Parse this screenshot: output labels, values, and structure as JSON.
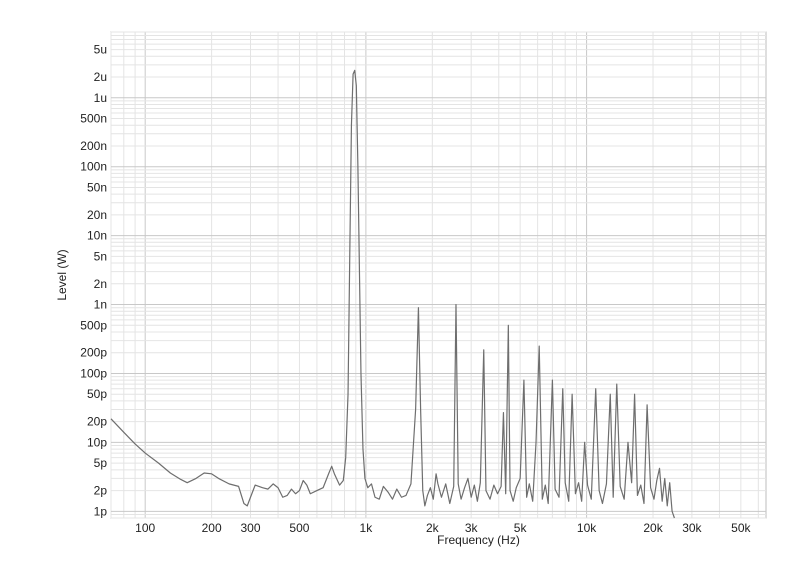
{
  "chart_data": {
    "type": "line",
    "title": "",
    "xlabel": "Frequency (Hz)",
    "ylabel": "Level (W)",
    "x_scale": "log",
    "y_scale": "log",
    "xlim": [
      70,
      65000
    ],
    "ylim": [
      8e-13,
      9e-06
    ],
    "grid": true,
    "x_ticks": [
      {
        "value": 100,
        "label": "100"
      },
      {
        "value": 200,
        "label": "200"
      },
      {
        "value": 300,
        "label": "300"
      },
      {
        "value": 500,
        "label": "500"
      },
      {
        "value": 1000,
        "label": "1k"
      },
      {
        "value": 2000,
        "label": "2k"
      },
      {
        "value": 3000,
        "label": "3k"
      },
      {
        "value": 5000,
        "label": "5k"
      },
      {
        "value": 10000,
        "label": "10k"
      },
      {
        "value": 20000,
        "label": "20k"
      },
      {
        "value": 30000,
        "label": "30k"
      },
      {
        "value": 50000,
        "label": "50k"
      }
    ],
    "y_ticks": [
      {
        "value": 1e-12,
        "label": "1p"
      },
      {
        "value": 2e-12,
        "label": "2p"
      },
      {
        "value": 5e-12,
        "label": "5p"
      },
      {
        "value": 1e-11,
        "label": "10p"
      },
      {
        "value": 2e-11,
        "label": "20p"
      },
      {
        "value": 5e-11,
        "label": "50p"
      },
      {
        "value": 1e-10,
        "label": "100p"
      },
      {
        "value": 2e-10,
        "label": "200p"
      },
      {
        "value": 5e-10,
        "label": "500p"
      },
      {
        "value": 1e-09,
        "label": "1n"
      },
      {
        "value": 2e-09,
        "label": "2n"
      },
      {
        "value": 5e-09,
        "label": "5n"
      },
      {
        "value": 1e-08,
        "label": "10n"
      },
      {
        "value": 2e-08,
        "label": "20n"
      },
      {
        "value": 5e-08,
        "label": "50n"
      },
      {
        "value": 1e-07,
        "label": "100n"
      },
      {
        "value": 2e-07,
        "label": "200n"
      },
      {
        "value": 5e-07,
        "label": "500n"
      },
      {
        "value": 1e-06,
        "label": "1u"
      },
      {
        "value": 2e-06,
        "label": "2u"
      },
      {
        "value": 5e-06,
        "label": "5u"
      }
    ],
    "series": [
      {
        "color": "#6e6e6e",
        "points": [
          [
            70,
            2.2e-11
          ],
          [
            80,
            1.4e-11
          ],
          [
            90,
            9.5e-12
          ],
          [
            100,
            7e-12
          ],
          [
            115,
            5e-12
          ],
          [
            130,
            3.6e-12
          ],
          [
            145,
            2.9e-12
          ],
          [
            155,
            2.6e-12
          ],
          [
            170,
            3e-12
          ],
          [
            185,
            3.6e-12
          ],
          [
            200,
            3.5e-12
          ],
          [
            215,
            3e-12
          ],
          [
            240,
            2.5e-12
          ],
          [
            265,
            2.3e-12
          ],
          [
            280,
            1.3e-12
          ],
          [
            290,
            1.2e-12
          ],
          [
            300,
            1.6e-12
          ],
          [
            315,
            2.4e-12
          ],
          [
            340,
            2.2e-12
          ],
          [
            360,
            2.1e-12
          ],
          [
            380,
            2.5e-12
          ],
          [
            400,
            2.2e-12
          ],
          [
            420,
            1.6e-12
          ],
          [
            440,
            1.7e-12
          ],
          [
            460,
            2.1e-12
          ],
          [
            480,
            1.8e-12
          ],
          [
            500,
            2e-12
          ],
          [
            520,
            2.8e-12
          ],
          [
            540,
            2.4e-12
          ],
          [
            560,
            1.8e-12
          ],
          [
            600,
            2e-12
          ],
          [
            640,
            2.2e-12
          ],
          [
            680,
            3.6e-12
          ],
          [
            700,
            4.5e-12
          ],
          [
            720,
            3.5e-12
          ],
          [
            760,
            2.4e-12
          ],
          [
            790,
            2.8e-12
          ],
          [
            810,
            6e-12
          ],
          [
            830,
            5e-11
          ],
          [
            845,
            5e-09
          ],
          [
            860,
            4e-07
          ],
          [
            875,
            2.2e-06
          ],
          [
            890,
            2.5e-06
          ],
          [
            905,
            1.5e-06
          ],
          [
            920,
            1e-07
          ],
          [
            935,
            3e-09
          ],
          [
            950,
            1e-10
          ],
          [
            970,
            8e-12
          ],
          [
            990,
            3e-12
          ],
          [
            1020,
            2.2e-12
          ],
          [
            1060,
            2.5e-12
          ],
          [
            1100,
            1.6e-12
          ],
          [
            1150,
            1.5e-12
          ],
          [
            1200,
            2.3e-12
          ],
          [
            1260,
            1.9e-12
          ],
          [
            1320,
            1.5e-12
          ],
          [
            1380,
            2.1e-12
          ],
          [
            1450,
            1.6e-12
          ],
          [
            1520,
            1.7e-12
          ],
          [
            1600,
            2.5e-12
          ],
          [
            1680,
            3e-11
          ],
          [
            1730,
            9e-10
          ],
          [
            1770,
            3e-11
          ],
          [
            1810,
            2e-12
          ],
          [
            1850,
            1.2e-12
          ],
          [
            1900,
            1.7e-12
          ],
          [
            1960,
            2.2e-12
          ],
          [
            2020,
            1.5e-12
          ],
          [
            2080,
            3.5e-12
          ],
          [
            2120,
            2.5e-12
          ],
          [
            2200,
            1.6e-12
          ],
          [
            2300,
            2.5e-12
          ],
          [
            2400,
            1.3e-12
          ],
          [
            2500,
            2.3e-12
          ],
          [
            2560,
            1e-09
          ],
          [
            2620,
            2.5e-12
          ],
          [
            2700,
            1.5e-12
          ],
          [
            2800,
            2.2e-12
          ],
          [
            2900,
            3e-12
          ],
          [
            3000,
            1.6e-12
          ],
          [
            3100,
            2.4e-12
          ],
          [
            3200,
            1.4e-12
          ],
          [
            3300,
            2.6e-12
          ],
          [
            3420,
            2.2e-10
          ],
          [
            3500,
            2e-12
          ],
          [
            3650,
            1.5e-12
          ],
          [
            3800,
            2.4e-12
          ],
          [
            3950,
            1.8e-12
          ],
          [
            4100,
            2.3e-12
          ],
          [
            4200,
            2.7e-11
          ],
          [
            4300,
            1.8e-12
          ],
          [
            4420,
            5e-10
          ],
          [
            4500,
            2e-12
          ],
          [
            4650,
            1.4e-12
          ],
          [
            4800,
            2.2e-12
          ],
          [
            5000,
            3e-12
          ],
          [
            5200,
            8e-11
          ],
          [
            5350,
            1.6e-12
          ],
          [
            5500,
            2.5e-12
          ],
          [
            5700,
            1.4e-12
          ],
          [
            5900,
            1e-11
          ],
          [
            6100,
            2.5e-10
          ],
          [
            6300,
            1.5e-12
          ],
          [
            6500,
            2.4e-12
          ],
          [
            6700,
            1.3e-12
          ],
          [
            7000,
            8e-11
          ],
          [
            7200,
            2.1e-12
          ],
          [
            7500,
            1.6e-12
          ],
          [
            7800,
            6e-11
          ],
          [
            8000,
            2.6e-12
          ],
          [
            8300,
            1.4e-12
          ],
          [
            8600,
            5e-11
          ],
          [
            8900,
            1.8e-12
          ],
          [
            9200,
            2.6e-12
          ],
          [
            9500,
            1.4e-12
          ],
          [
            9800,
            1e-11
          ],
          [
            10100,
            2.4e-12
          ],
          [
            10500,
            1.5e-12
          ],
          [
            11000,
            6e-11
          ],
          [
            11400,
            2e-12
          ],
          [
            11800,
            1.3e-12
          ],
          [
            12300,
            2.5e-12
          ],
          [
            12800,
            5e-11
          ],
          [
            13200,
            1.6e-12
          ],
          [
            13700,
            7e-11
          ],
          [
            14200,
            2.3e-12
          ],
          [
            14800,
            1.5e-12
          ],
          [
            15400,
            1e-11
          ],
          [
            16000,
            2.6e-12
          ],
          [
            16500,
            5e-11
          ],
          [
            17000,
            1.7e-12
          ],
          [
            17600,
            2.4e-12
          ],
          [
            18200,
            1.3e-12
          ],
          [
            18800,
            3.5e-11
          ],
          [
            19500,
            2.2e-12
          ],
          [
            20200,
            1.5e-12
          ],
          [
            20800,
            2.8e-12
          ],
          [
            21400,
            4.2e-12
          ],
          [
            22000,
            1.4e-12
          ],
          [
            22600,
            3e-12
          ],
          [
            23200,
            1.2e-12
          ],
          [
            23800,
            2.6e-12
          ],
          [
            24400,
            1e-12
          ],
          [
            25000,
            8e-13
          ]
        ]
      }
    ]
  }
}
